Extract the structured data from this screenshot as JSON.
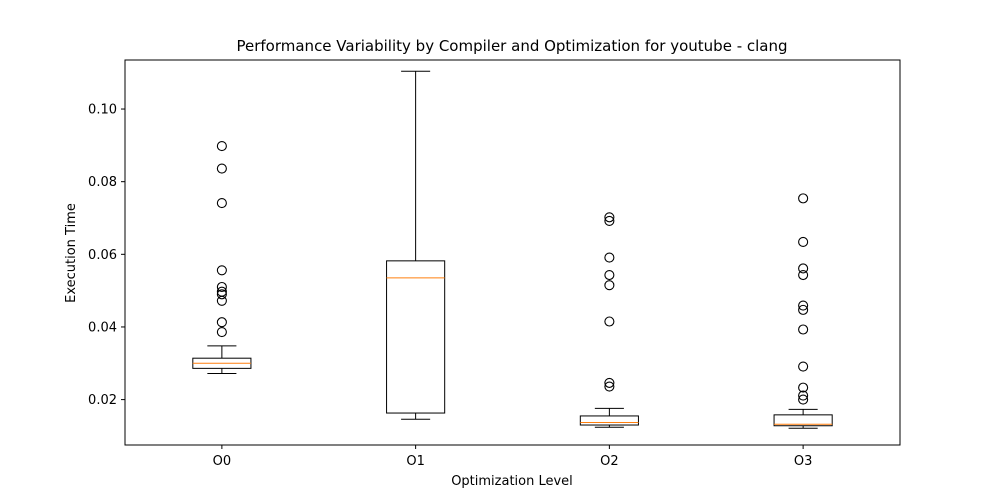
{
  "chart_data": {
    "type": "boxplot",
    "title": "Performance Variability by Compiler and Optimization for youtube - clang",
    "xlabel": "Optimization Level",
    "ylabel": "Execution Time",
    "categories": [
      "O0",
      "O1",
      "O2",
      "O3"
    ],
    "ylim": [
      0.0075,
      0.1135
    ],
    "yticks": [
      0.02,
      0.04,
      0.06,
      0.08,
      0.1
    ],
    "ytick_labels": [
      "0.02",
      "0.04",
      "0.06",
      "0.08",
      "0.10"
    ],
    "grid": false,
    "boxes": [
      {
        "category": "O0",
        "whisker_low": 0.0272,
        "q1": 0.0286,
        "median": 0.03,
        "q3": 0.0314,
        "whisker_high": 0.0348,
        "outliers": [
          0.0898,
          0.0836,
          0.0741,
          0.0556,
          0.051,
          0.0497,
          0.049,
          0.0472,
          0.0413,
          0.0386
        ]
      },
      {
        "category": "O1",
        "whisker_low": 0.0146,
        "q1": 0.0163,
        "median": 0.0535,
        "q3": 0.0582,
        "whisker_high": 0.1104,
        "outliers": []
      },
      {
        "category": "O2",
        "whisker_low": 0.0124,
        "q1": 0.013,
        "median": 0.0137,
        "q3": 0.0155,
        "whisker_high": 0.0176,
        "outliers": [
          0.0702,
          0.0692,
          0.0591,
          0.0543,
          0.0515,
          0.0415,
          0.0246,
          0.0236
        ]
      },
      {
        "category": "O3",
        "whisker_low": 0.0121,
        "q1": 0.0128,
        "median": 0.0132,
        "q3": 0.0158,
        "whisker_high": 0.0173,
        "outliers": [
          0.0754,
          0.0634,
          0.0561,
          0.0543,
          0.0459,
          0.0447,
          0.0393,
          0.0291,
          0.0233,
          0.0211,
          0.02
        ]
      }
    ],
    "colors": {
      "box": "#000000",
      "median": "#ff7f0e",
      "outlier_edge": "#000000"
    }
  }
}
